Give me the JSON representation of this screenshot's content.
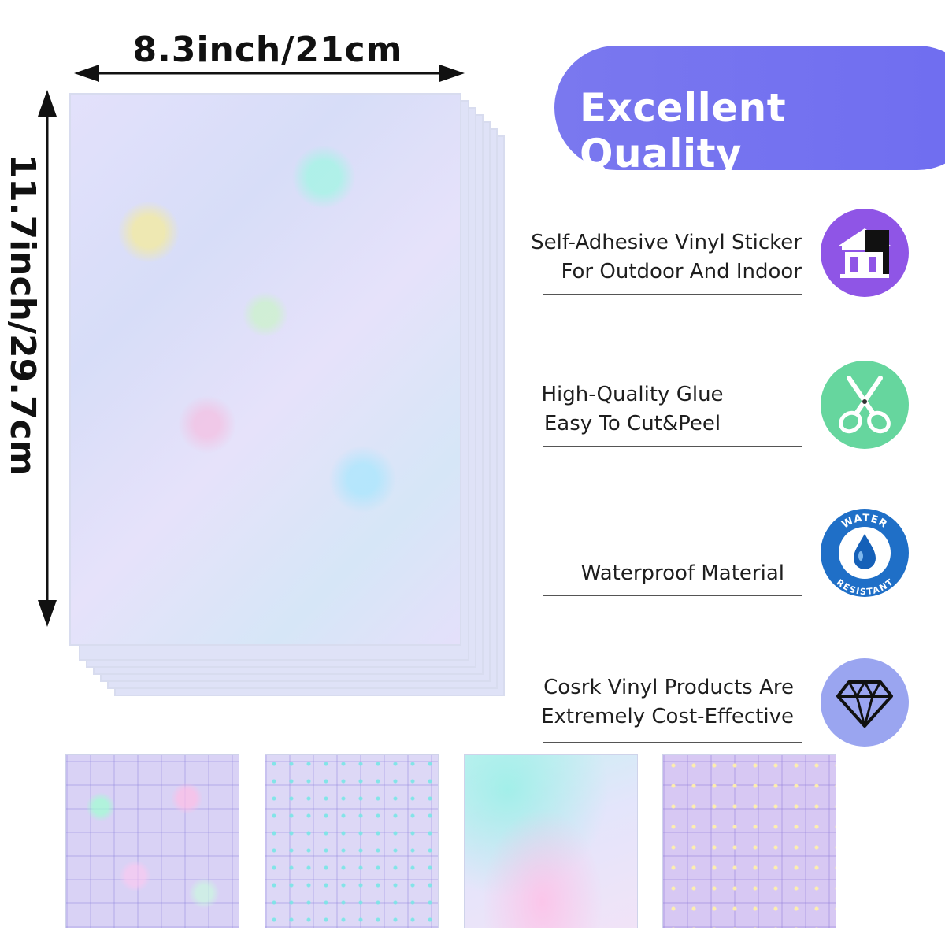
{
  "dimensions": {
    "width_label": "8.3inch/21cm",
    "height_label": "11.7inch/29.7cm"
  },
  "banner": {
    "title": "Excellent Quality",
    "color": "#7472ef"
  },
  "features": [
    {
      "line1": "Self-Adhesive Vinyl Sticker",
      "line2": "For Outdoor And Indoor",
      "icon": "house-icon",
      "icon_color": "#8f55e6"
    },
    {
      "line1": "High-Quality Glue",
      "line2": "Easy To Cut&Peel",
      "icon": "scissors-icon",
      "icon_color": "#66d69e"
    },
    {
      "line1": "Waterproof Material",
      "line2": "",
      "icon": "water-resistant-icon",
      "icon_color": "#1f6fc7",
      "badge_top": "WATER",
      "badge_bottom": "RESISTANT"
    },
    {
      "line1": "Cosrk Vinyl Products Are",
      "line2": "Extremely Cost-Effective",
      "icon": "diamond-icon",
      "icon_color": "#9aa5f0"
    }
  ],
  "swatches": [
    {
      "name": "shattered-glass"
    },
    {
      "name": "dots"
    },
    {
      "name": "rainbow-gradient"
    },
    {
      "name": "stars"
    }
  ]
}
